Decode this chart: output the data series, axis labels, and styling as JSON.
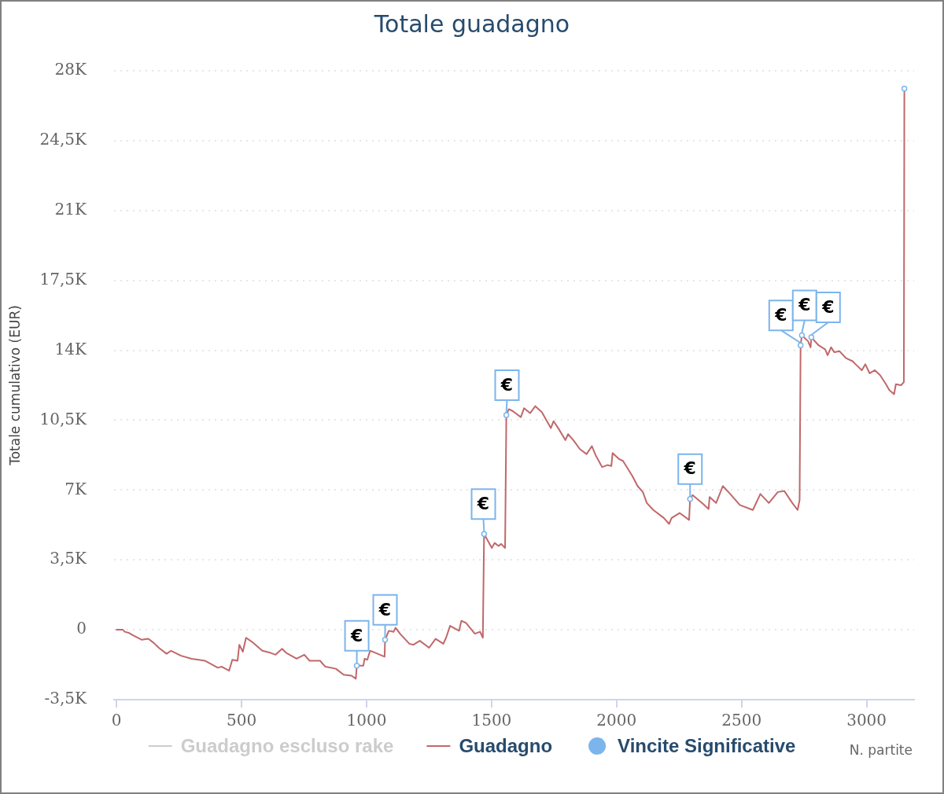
{
  "chart_data": {
    "type": "line",
    "title": "Totale guadagno",
    "xlabel": "N. partite",
    "ylabel": "Totale cumulativo (EUR)",
    "xlim": [
      -10,
      3190
    ],
    "xticks": [
      0,
      500,
      1000,
      1500,
      2000,
      2500,
      3000
    ],
    "ylim": [
      -3500,
      28000
    ],
    "yticks": [
      {
        "value": -3500,
        "label": "-3,5K"
      },
      0,
      {
        "value": 3500,
        "label": "3,5K"
      },
      {
        "value": 7000,
        "label": "7K"
      },
      {
        "value": 10500,
        "label": "10,5K"
      },
      {
        "value": 14000,
        "label": "14K"
      },
      {
        "value": 17500,
        "label": "17,5K"
      },
      {
        "value": 21000,
        "label": "21K"
      },
      {
        "value": 24500,
        "label": "24,5K"
      },
      {
        "value": 28000,
        "label": "28K"
      }
    ],
    "grid": "y",
    "legend": "bottom",
    "series": [
      {
        "name": "Guadagno escluso rake",
        "color": "#cccccc"
      },
      {
        "name": "Guadagno",
        "color": "#c0686a",
        "marker": "none",
        "x": [
          0,
          25,
          33,
          48,
          69,
          101,
          127,
          148,
          169,
          200,
          218,
          258,
          300,
          353,
          405,
          421,
          450,
          463,
          484,
          491,
          505,
          518,
          541,
          583,
          615,
          636,
          662,
          678,
          720,
          751,
          772,
          814,
          835,
          877,
          908,
          940,
          957,
          961,
          987,
          992,
          1003,
          1014,
          1035,
          1072,
          1074,
          1089,
          1108,
          1116,
          1134,
          1171,
          1187,
          1213,
          1250,
          1276,
          1307,
          1318,
          1334,
          1370,
          1379,
          1397,
          1433,
          1454,
          1465,
          1470,
          1501,
          1512,
          1528,
          1538,
          1554,
          1559,
          1569,
          1585,
          1617,
          1630,
          1654,
          1675,
          1701,
          1737,
          1748,
          1769,
          1795,
          1806,
          1827,
          1853,
          1880,
          1901,
          1916,
          1942,
          1963,
          1979,
          1984,
          2010,
          2026,
          2063,
          2084,
          2105,
          2121,
          2147,
          2189,
          2210,
          2220,
          2252,
          2290,
          2294,
          2304,
          2346,
          2368,
          2372,
          2398,
          2425,
          2451,
          2493,
          2545,
          2575,
          2609,
          2645,
          2671,
          2703,
          2724,
          2732,
          2736,
          2741,
          2766,
          2776,
          2779,
          2808,
          2834,
          2844,
          2858,
          2871,
          2892,
          2918,
          2944,
          2960,
          2981,
          2995,
          3012,
          3033,
          3054,
          3075,
          3091,
          3110,
          3117,
          3138,
          3149,
          3151
        ],
        "values": [
          0,
          0,
          -100,
          -150,
          -300,
          -500,
          -450,
          -650,
          -900,
          -1200,
          -1050,
          -1300,
          -1450,
          -1550,
          -1900,
          -1850,
          -2050,
          -1500,
          -1550,
          -750,
          -1100,
          -400,
          -600,
          -1050,
          -1150,
          -1250,
          -950,
          -1150,
          -1450,
          -1250,
          -1550,
          -1550,
          -1850,
          -1950,
          -2250,
          -2300,
          -2450,
          -1800,
          -1800,
          -1450,
          -1500,
          -1050,
          -1150,
          -1350,
          -500,
          -50,
          -100,
          100,
          -200,
          -700,
          -750,
          -550,
          -900,
          -450,
          -700,
          -400,
          200,
          -50,
          450,
          350,
          -200,
          -100,
          -400,
          4800,
          4100,
          4350,
          4200,
          4300,
          4100,
          10750,
          11050,
          10950,
          10650,
          11100,
          10850,
          11200,
          10900,
          10100,
          10450,
          10050,
          9500,
          9800,
          9500,
          9050,
          8800,
          9200,
          8750,
          8150,
          8250,
          8200,
          8850,
          8550,
          8450,
          7700,
          7200,
          6900,
          6350,
          6000,
          5600,
          5300,
          5600,
          5850,
          5500,
          6550,
          6750,
          6300,
          6050,
          6650,
          6350,
          7200,
          6850,
          6250,
          6000,
          6800,
          6350,
          6900,
          6950,
          6350,
          6000,
          6500,
          14250,
          14750,
          14450,
          14150,
          14650,
          14250,
          14050,
          13750,
          14150,
          13900,
          13950,
          13600,
          13450,
          13250,
          13000,
          13300,
          12850,
          13000,
          12750,
          12350,
          12000,
          11800,
          12300,
          12250,
          12400,
          27100
        ]
      },
      {
        "name": "Vincite Significative",
        "type": "scatter",
        "color": "#7cb5ec",
        "marker": "circle",
        "x": [
          961,
          1074,
          1470,
          1559,
          2294,
          2736,
          2741,
          2779,
          3151
        ],
        "values": [
          -1800,
          -500,
          4800,
          10750,
          6550,
          14250,
          14750,
          14650,
          27100
        ],
        "value_labels": [
          "€",
          "€",
          "€",
          "€",
          "€",
          "€",
          "€",
          "€",
          null
        ]
      }
    ]
  }
}
